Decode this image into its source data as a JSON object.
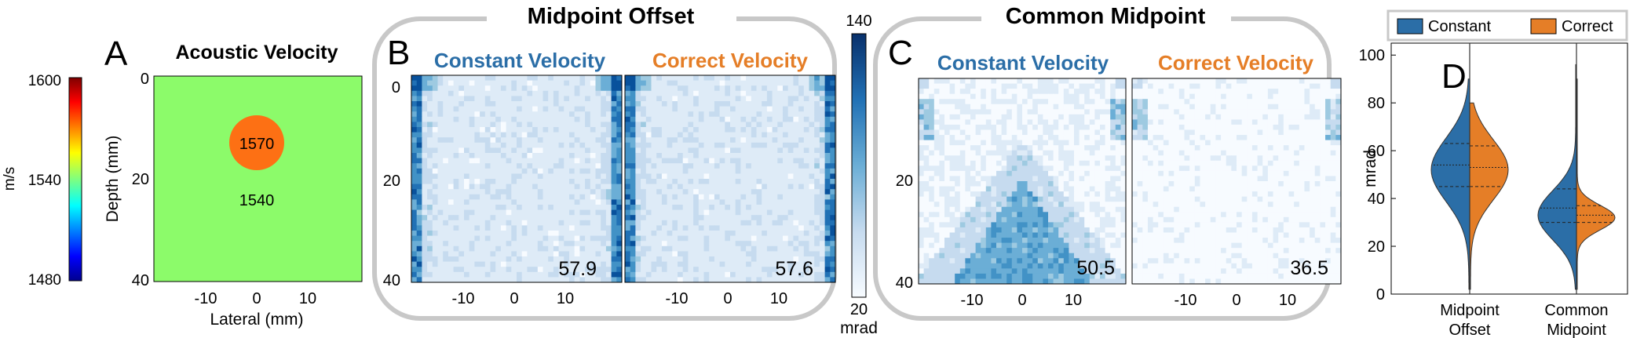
{
  "colors": {
    "constant": "#2b6ea7",
    "correct": "#e57e27",
    "medium_green": "#8cfb6a",
    "inclusion_orange": "#fd7014",
    "box_gray": "#c8c8c8",
    "blues": [
      "#f7fbff",
      "#deebf7",
      "#c6dbef",
      "#9ecae1",
      "#6baed6",
      "#4292c6",
      "#2171b5",
      "#08519c"
    ]
  },
  "velocity_colorbar": {
    "unit": "m/s",
    "ticks": [
      "1600",
      "1540",
      "1480"
    ]
  },
  "panel_a": {
    "letter": "A",
    "title": "Acoustic Velocity",
    "ylabel": "Depth (mm)",
    "xlabel": "Lateral (mm)",
    "yticks": [
      "0",
      "20",
      "40"
    ],
    "xticks": [
      "-10",
      "0",
      "10"
    ],
    "inclusion_label": "1570",
    "background_label": "1540"
  },
  "group_mo": {
    "title": "Midpoint Offset",
    "letter": "B",
    "yticks": [
      "0",
      "20",
      "40"
    ],
    "xticks": [
      "-10",
      "0",
      "10"
    ],
    "left_title": "Constant Velocity",
    "right_title": "Correct Velocity",
    "left_value": "57.9",
    "right_value": "57.6"
  },
  "phase_colorbar": {
    "max": "140",
    "min": "20",
    "unit": "mrad"
  },
  "group_cmp": {
    "title": "Common Midpoint",
    "letter": "C",
    "yticks": [
      "20",
      "40"
    ],
    "xticks_left": [
      "-10",
      "0",
      "10"
    ],
    "xticks_right": [
      "-10",
      "0",
      "10"
    ],
    "left_title": "Constant Velocity",
    "right_title": "Correct Velocity",
    "left_value": "50.5",
    "right_value": "36.5"
  },
  "chart_data": {
    "type": "violin",
    "letter": "D",
    "ylabel": "mrad",
    "ylim": [
      0,
      105
    ],
    "yticks": [
      0,
      20,
      40,
      60,
      80,
      100
    ],
    "categories": [
      "Midpoint\nOffset",
      "Common\nMidpoint"
    ],
    "legend": [
      "Constant",
      "Correct"
    ],
    "legend_position": "top",
    "series": [
      {
        "name": "Constant",
        "groups": [
          {
            "category": "Midpoint Offset",
            "min": 2,
            "max": 90,
            "q1": 45,
            "median": 54,
            "q3": 63,
            "mode": 52
          },
          {
            "category": "Common Midpoint",
            "min": 2,
            "max": 96,
            "q1": 30,
            "median": 36,
            "q3": 44,
            "mode": 33
          }
        ]
      },
      {
        "name": "Correct",
        "groups": [
          {
            "category": "Midpoint Offset",
            "min": 2,
            "max": 80,
            "q1": 45,
            "median": 53,
            "q3": 62,
            "mode": 52
          },
          {
            "category": "Common Midpoint",
            "min": 2,
            "max": 90,
            "q1": 30,
            "median": 33,
            "q3": 37,
            "mode": 32
          }
        ]
      }
    ]
  }
}
